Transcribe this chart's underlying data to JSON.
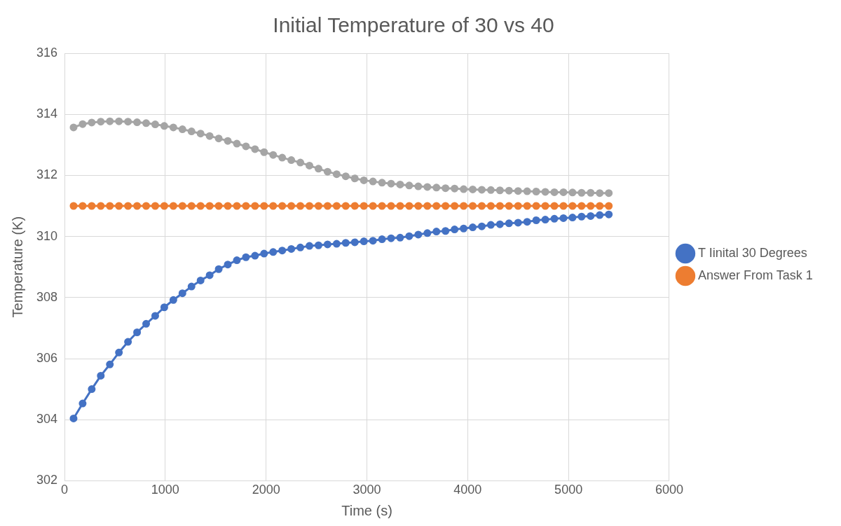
{
  "chart_data": {
    "type": "line",
    "title": "Initial Temperature of 30 vs 40",
    "xlabel": "Time (s)",
    "ylabel": "Temperature (K)",
    "x": [
      90,
      180,
      270,
      360,
      450,
      540,
      630,
      720,
      810,
      900,
      990,
      1080,
      1170,
      1260,
      1350,
      1440,
      1530,
      1620,
      1710,
      1800,
      1890,
      1980,
      2070,
      2160,
      2250,
      2340,
      2430,
      2520,
      2610,
      2700,
      2790,
      2880,
      2970,
      3060,
      3150,
      3240,
      3330,
      3420,
      3510,
      3600,
      3690,
      3780,
      3870,
      3960,
      4050,
      4140,
      4230,
      4320,
      4410,
      4500,
      4590,
      4680,
      4770,
      4860,
      4950,
      5040,
      5130,
      5220,
      5310,
      5400
    ],
    "series": [
      {
        "name": "T Iinital 30 Degrees",
        "color": "#4472c4",
        "values": [
          304.04,
          304.53,
          305.0,
          305.44,
          305.81,
          306.2,
          306.55,
          306.86,
          307.14,
          307.4,
          307.68,
          307.92,
          308.14,
          308.36,
          308.56,
          308.73,
          308.93,
          309.08,
          309.22,
          309.32,
          309.37,
          309.44,
          309.49,
          309.54,
          309.59,
          309.64,
          309.69,
          309.71,
          309.74,
          309.76,
          309.79,
          309.81,
          309.84,
          309.86,
          309.91,
          309.94,
          309.96,
          310.01,
          310.06,
          310.11,
          310.16,
          310.18,
          310.23,
          310.26,
          310.3,
          310.33,
          310.38,
          310.4,
          310.43,
          310.45,
          310.48,
          310.53,
          310.55,
          310.58,
          310.6,
          310.62,
          310.65,
          310.67,
          310.7,
          310.72
        ]
      },
      {
        "name": "Answer From Task 1",
        "color": "#ed7d31",
        "values": [
          311,
          311,
          311,
          311,
          311,
          311,
          311,
          311,
          311,
          311,
          311,
          311,
          311,
          311,
          311,
          311,
          311,
          311,
          311,
          311,
          311,
          311,
          311,
          311,
          311,
          311,
          311,
          311,
          311,
          311,
          311,
          311,
          311,
          311,
          311,
          311,
          311,
          311,
          311,
          311,
          311,
          311,
          311,
          311,
          311,
          311,
          311,
          311,
          311,
          311,
          311,
          311,
          311,
          311,
          311,
          311,
          311,
          311,
          311,
          311
        ]
      },
      {
        "color": "#a5a5a5",
        "values": [
          313.57,
          313.68,
          313.73,
          313.76,
          313.77,
          313.77,
          313.76,
          313.74,
          313.71,
          313.67,
          313.62,
          313.57,
          313.51,
          313.44,
          313.37,
          313.29,
          313.21,
          313.13,
          313.04,
          312.95,
          312.86,
          312.76,
          312.67,
          312.58,
          312.5,
          312.42,
          312.32,
          312.22,
          312.12,
          312.04,
          311.97,
          311.9,
          311.84,
          311.8,
          311.76,
          311.73,
          311.7,
          311.67,
          311.64,
          311.62,
          311.6,
          311.58,
          311.57,
          311.55,
          311.54,
          311.53,
          311.52,
          311.51,
          311.5,
          311.49,
          311.48,
          311.47,
          311.46,
          311.45,
          311.45,
          311.44,
          311.43,
          311.43,
          311.42,
          311.42
        ]
      }
    ],
    "xlim": [
      0,
      6000
    ],
    "xticks": [
      0,
      1000,
      2000,
      3000,
      4000,
      5000,
      6000
    ],
    "ylim": [
      302,
      316
    ],
    "yticks": [
      302,
      304,
      306,
      308,
      310,
      312,
      314,
      316
    ],
    "grid": true,
    "legend": "right",
    "marker": "circle",
    "line_style": "solid"
  }
}
